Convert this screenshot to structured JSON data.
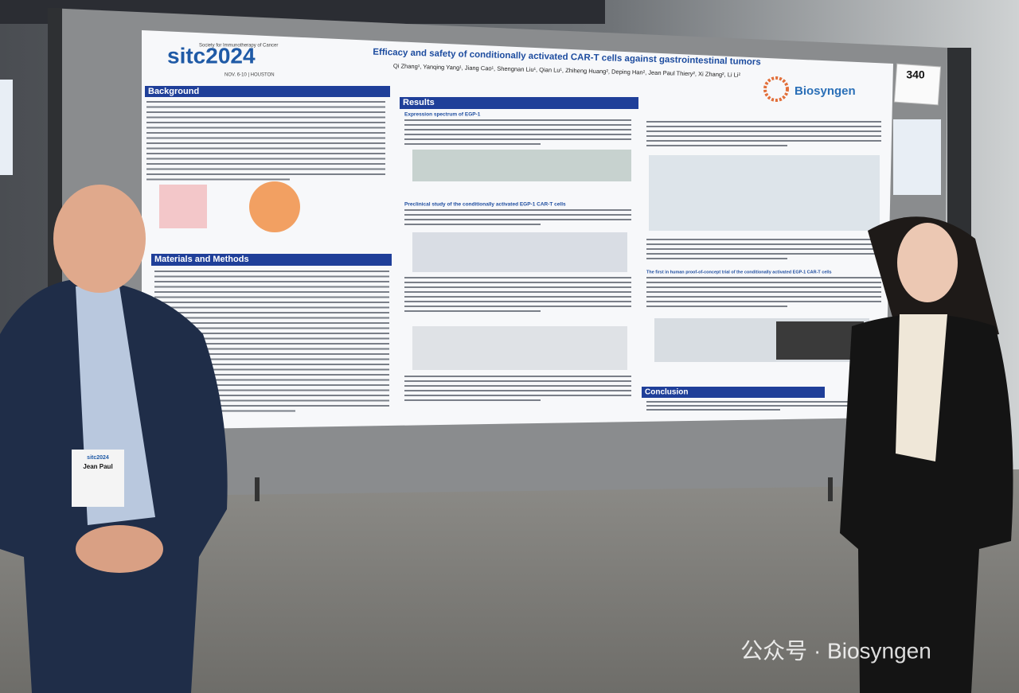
{
  "poster": {
    "logo": "sitc2024",
    "logo_sub": "Society for Immunotherapy of Cancer",
    "logo_date": "NOV. 6-10 | HOUSTON",
    "title": "Efficacy and safety of conditionally activated CAR-T cells against gastrointestinal tumors",
    "authors": "Qi Zhang¹, Yanqing Yang¹, Jiang Cao¹, Shengnan Liu¹, Qian Lu¹, Zhiheng Huang², Deping Han², Jean Paul Thiery², Xi Zhang², Li Li²",
    "company": "Biosyngen",
    "sections": {
      "background": "Background",
      "methods": "Materials and Methods",
      "results": "Results",
      "conclusion": "Conclusion"
    },
    "subheads": [
      "Expression spectrum of EGP-1",
      "Preclinical study of the conditionally activated EGP-1 CAR-T cells",
      "The first in human proof-of-concept trial of the conditionally activated EGP-1 CAR-T cells"
    ]
  },
  "board_number": "340",
  "badge": {
    "event": "sitc2024",
    "name": "Jean Paul"
  },
  "watermark": "公众号 · Biosyngen"
}
